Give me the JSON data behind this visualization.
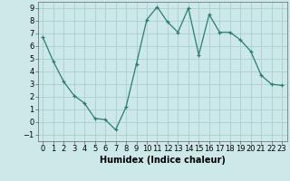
{
  "x": [
    0,
    1,
    2,
    3,
    4,
    5,
    6,
    7,
    8,
    9,
    10,
    11,
    12,
    13,
    14,
    15,
    16,
    17,
    18,
    19,
    20,
    21,
    22,
    23
  ],
  "y": [
    6.7,
    4.8,
    3.2,
    2.1,
    1.5,
    0.3,
    0.2,
    -0.6,
    1.2,
    4.6,
    8.1,
    9.1,
    7.9,
    7.1,
    9.0,
    5.3,
    8.5,
    7.1,
    7.1,
    6.5,
    5.6,
    3.7,
    3.0,
    2.9
  ],
  "xlabel": "Humidex (Indice chaleur)",
  "ylim": [
    -1.5,
    9.5
  ],
  "xlim": [
    -0.5,
    23.5
  ],
  "yticks": [
    -1,
    0,
    1,
    2,
    3,
    4,
    5,
    6,
    7,
    8,
    9
  ],
  "xticks": [
    0,
    1,
    2,
    3,
    4,
    5,
    6,
    7,
    8,
    9,
    10,
    11,
    12,
    13,
    14,
    15,
    16,
    17,
    18,
    19,
    20,
    21,
    22,
    23
  ],
  "line_color": "#2d7c6e",
  "marker_color": "#2d7c6e",
  "bg_color": "#cce8e8",
  "grid_color": "#aad0d0",
  "xlabel_fontsize": 7,
  "tick_fontsize": 6
}
